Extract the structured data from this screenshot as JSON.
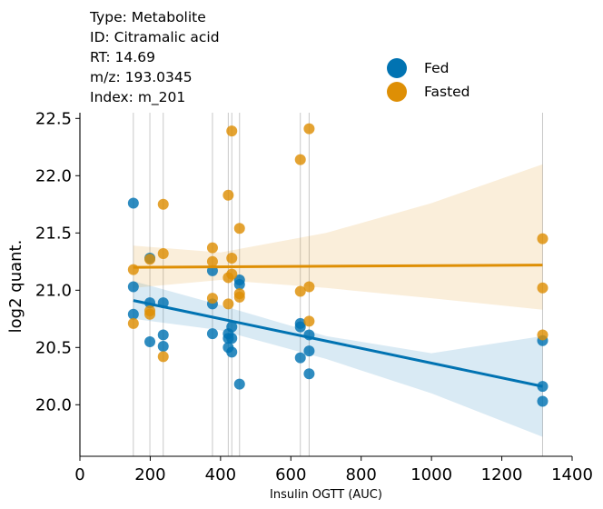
{
  "info": {
    "type_line": "Type: Metabolite",
    "id_line": "ID: Citramalic acid",
    "rt_line": "RT: 14.69",
    "mz_line": "m/z: 193.0345",
    "index_line": "Index: m_201"
  },
  "legend": [
    {
      "label": "Fed",
      "color": "#0173b2"
    },
    {
      "label": "Fasted",
      "color": "#de8f05"
    }
  ],
  "chart_data": {
    "type": "scatter",
    "title": "",
    "xlabel": "Insulin OGTT (AUC)",
    "ylabel": "log2 quant.",
    "xlim": [
      0,
      1400
    ],
    "ylim": [
      19.55,
      22.55
    ],
    "xticks": [
      0,
      200,
      400,
      600,
      800,
      1000,
      1200,
      1400
    ],
    "yticks": [
      20.0,
      20.5,
      21.0,
      21.5,
      22.0,
      22.5
    ],
    "ytick_labels": [
      "20.0",
      "20.5",
      "21.0",
      "21.5",
      "22.0",
      "22.5"
    ],
    "vlines": [
      152,
      199,
      237,
      377,
      422,
      432,
      454,
      627,
      652,
      1316
    ],
    "series": [
      {
        "name": "Fed",
        "color": "#0173b2",
        "points": [
          {
            "x": 152,
            "y": 21.76
          },
          {
            "x": 152,
            "y": 21.03
          },
          {
            "x": 152,
            "y": 20.79
          },
          {
            "x": 199,
            "y": 21.28
          },
          {
            "x": 199,
            "y": 20.89
          },
          {
            "x": 199,
            "y": 20.55
          },
          {
            "x": 237,
            "y": 20.89
          },
          {
            "x": 237,
            "y": 20.61
          },
          {
            "x": 237,
            "y": 20.51
          },
          {
            "x": 377,
            "y": 21.17
          },
          {
            "x": 377,
            "y": 20.88
          },
          {
            "x": 377,
            "y": 20.62
          },
          {
            "x": 422,
            "y": 20.62
          },
          {
            "x": 422,
            "y": 20.58
          },
          {
            "x": 422,
            "y": 20.5
          },
          {
            "x": 432,
            "y": 20.68
          },
          {
            "x": 432,
            "y": 20.58
          },
          {
            "x": 432,
            "y": 20.46
          },
          {
            "x": 454,
            "y": 21.09
          },
          {
            "x": 454,
            "y": 21.05
          },
          {
            "x": 454,
            "y": 20.18
          },
          {
            "x": 627,
            "y": 20.71
          },
          {
            "x": 627,
            "y": 20.68
          },
          {
            "x": 627,
            "y": 20.41
          },
          {
            "x": 652,
            "y": 20.61
          },
          {
            "x": 652,
            "y": 20.47
          },
          {
            "x": 652,
            "y": 20.27
          },
          {
            "x": 1316,
            "y": 20.56
          },
          {
            "x": 1316,
            "y": 20.16
          },
          {
            "x": 1316,
            "y": 20.03
          }
        ],
        "regression": {
          "x": [
            152,
            1316
          ],
          "y": [
            20.91,
            20.16
          ]
        },
        "ci": {
          "x": [
            152,
            400,
            700,
            1000,
            1316
          ],
          "lower": [
            20.75,
            20.65,
            20.4,
            20.1,
            19.72
          ],
          "upper": [
            21.08,
            20.87,
            20.6,
            20.45,
            20.6
          ]
        }
      },
      {
        "name": "Fasted",
        "color": "#de8f05",
        "points": [
          {
            "x": 152,
            "y": 21.18
          },
          {
            "x": 152,
            "y": 20.71
          },
          {
            "x": 199,
            "y": 21.27
          },
          {
            "x": 199,
            "y": 20.82
          },
          {
            "x": 199,
            "y": 20.79
          },
          {
            "x": 237,
            "y": 21.75
          },
          {
            "x": 237,
            "y": 21.32
          },
          {
            "x": 237,
            "y": 20.42
          },
          {
            "x": 377,
            "y": 21.37
          },
          {
            "x": 377,
            "y": 21.25
          },
          {
            "x": 377,
            "y": 20.93
          },
          {
            "x": 422,
            "y": 21.83
          },
          {
            "x": 422,
            "y": 21.11
          },
          {
            "x": 422,
            "y": 20.88
          },
          {
            "x": 432,
            "y": 22.39
          },
          {
            "x": 432,
            "y": 21.28
          },
          {
            "x": 432,
            "y": 21.14
          },
          {
            "x": 454,
            "y": 21.54
          },
          {
            "x": 454,
            "y": 20.97
          },
          {
            "x": 454,
            "y": 20.94
          },
          {
            "x": 627,
            "y": 22.14
          },
          {
            "x": 627,
            "y": 20.99
          },
          {
            "x": 652,
            "y": 22.41
          },
          {
            "x": 652,
            "y": 21.03
          },
          {
            "x": 652,
            "y": 20.73
          },
          {
            "x": 1316,
            "y": 21.45
          },
          {
            "x": 1316,
            "y": 21.02
          },
          {
            "x": 1316,
            "y": 20.61
          }
        ],
        "regression": {
          "x": [
            152,
            1316
          ],
          "y": [
            21.2,
            21.22
          ]
        },
        "ci": {
          "x": [
            152,
            400,
            700,
            1000,
            1316
          ],
          "lower": [
            21.02,
            21.09,
            21.02,
            20.93,
            20.83
          ],
          "upper": [
            21.39,
            21.33,
            21.5,
            21.76,
            22.1
          ]
        }
      }
    ]
  }
}
